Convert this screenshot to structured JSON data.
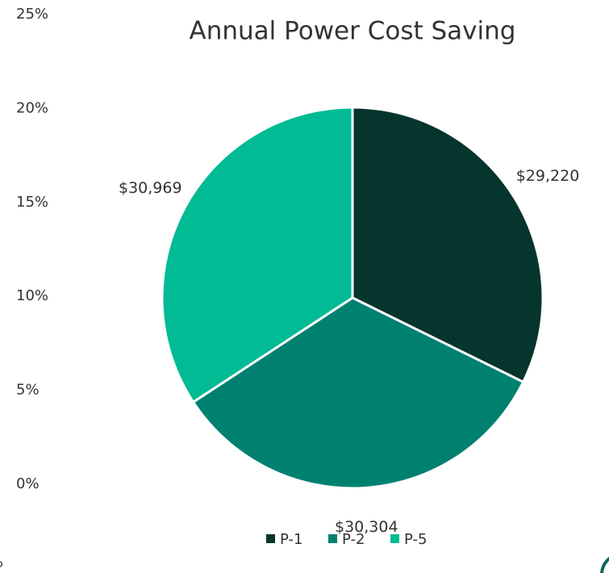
{
  "chart_data": {
    "type": "pie",
    "title": "Annual Power Cost Saving",
    "categories": [
      "P-1",
      "P-2",
      "P-5"
    ],
    "values": [
      29220,
      30304,
      30969
    ],
    "value_labels": [
      "$29,220",
      "$30,304",
      "$30,969"
    ],
    "colors": [
      "#05352c",
      "#008170",
      "#00bb93"
    ],
    "ylim": [
      0,
      25
    ],
    "yticks": [
      {
        "value": 0,
        "label": "0%"
      },
      {
        "value": 5,
        "label": "5%"
      },
      {
        "value": 10,
        "label": "10%"
      },
      {
        "value": 15,
        "label": "15%"
      },
      {
        "value": 20,
        "label": "20%"
      },
      {
        "value": 25,
        "label": "25%"
      }
    ],
    "annotations": [
      "%"
    ],
    "legend": "bottom"
  }
}
